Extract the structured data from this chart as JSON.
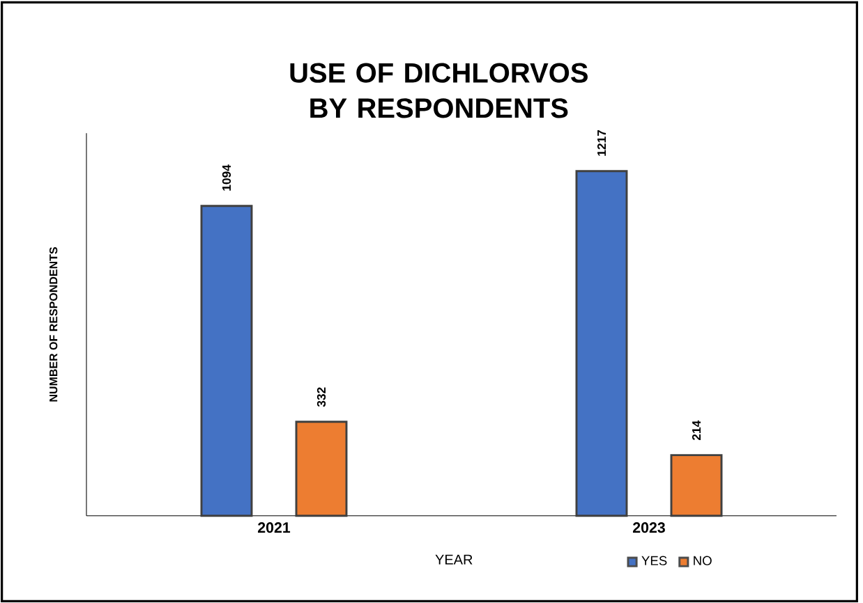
{
  "chart_data": {
    "type": "bar",
    "title": "USE OF DICHLORVOS  BY RESPONDENTS",
    "xlabel": "YEAR",
    "ylabel": "NUMBER OF RESPONDENTS",
    "categories": [
      "2021",
      "2023"
    ],
    "series": [
      {
        "name": "YES",
        "color": "#4472c4",
        "values": [
          1094,
          1217
        ]
      },
      {
        "name": "NO",
        "color": "#ed7d31",
        "values": [
          332,
          214
        ]
      }
    ],
    "data_labels": true,
    "legend": "bottom"
  }
}
